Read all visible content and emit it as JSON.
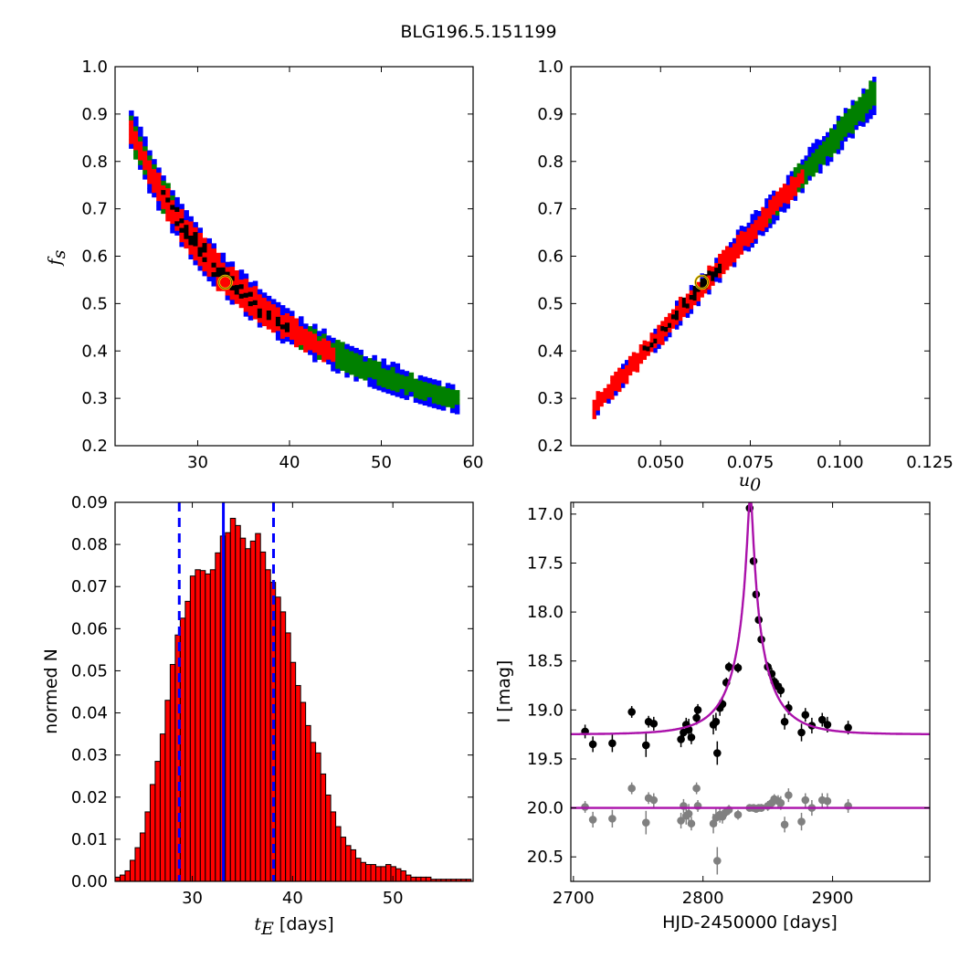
{
  "figure_title": "BLG196.5.151199",
  "colors": {
    "contour_black": "#000000",
    "contour_red": "#ff0000",
    "contour_green": "#008000",
    "contour_blue": "#0000ff",
    "hist_fill": "#ff0000",
    "hist_edge": "#000000",
    "hist_lines": "#0000ff",
    "model_curve": "#aa11aa",
    "residuals": "#808080",
    "best_fit_marker": "#ffd700"
  },
  "chart_data": [
    {
      "type": "heatmap",
      "panel": "top-left",
      "title": "",
      "xlabel": "",
      "ylabel": "f_s",
      "xlim": [
        21,
        60
      ],
      "ylim": [
        0.2,
        1.0
      ],
      "xticks": [
        "30",
        "40",
        "50",
        "60"
      ],
      "yticks": [
        "0.2",
        "0.3",
        "0.4",
        "0.5",
        "0.6",
        "0.7",
        "0.8",
        "0.9",
        "1.0"
      ],
      "curve": "fs = 15.7 / (tE - 4.3)",
      "ridge_x_range": [
        22.5,
        58
      ],
      "confidence_levels": [
        "black",
        "red",
        "green",
        "blue"
      ],
      "best_fit": {
        "x": 33.0,
        "y": 0.545
      }
    },
    {
      "type": "heatmap",
      "panel": "top-right",
      "title": "",
      "xlabel": "u_0",
      "ylabel": "",
      "xlim": [
        0.025,
        0.125
      ],
      "ylim": [
        0.2,
        1.0
      ],
      "xticks": [
        "0.050",
        "0.075",
        "0.100",
        "0.125"
      ],
      "yticks": [
        "0.2",
        "0.3",
        "0.4",
        "0.5",
        "0.6",
        "0.7",
        "0.8",
        "0.9",
        "1.0"
      ],
      "ridge_x_range": [
        0.031,
        0.11
      ],
      "ridge_y_range": [
        0.275,
        0.945
      ],
      "confidence_levels": [
        "black",
        "red",
        "green",
        "blue"
      ],
      "best_fit": {
        "x": 0.0615,
        "y": 0.545
      }
    },
    {
      "type": "bar",
      "panel": "bottom-left",
      "title": "",
      "xlabel": "t_E [days]",
      "ylabel": "normed N",
      "xlim": [
        22.3,
        58
      ],
      "ylim": [
        0.0,
        0.09
      ],
      "xticks": [
        "30",
        "40",
        "50"
      ],
      "yticks": [
        "0.00",
        "0.01",
        "0.02",
        "0.03",
        "0.04",
        "0.05",
        "0.06",
        "0.07",
        "0.08",
        "0.09"
      ],
      "bin_start": 22.3,
      "bin_width": 0.5,
      "values": [
        0.001,
        0.0015,
        0.0025,
        0.005,
        0.008,
        0.0115,
        0.0165,
        0.023,
        0.0285,
        0.035,
        0.043,
        0.0515,
        0.0585,
        0.0625,
        0.0665,
        0.0725,
        0.074,
        0.0738,
        0.073,
        0.074,
        0.078,
        0.082,
        0.0828,
        0.0862,
        0.0845,
        0.0815,
        0.079,
        0.0808,
        0.0826,
        0.0782,
        0.074,
        0.071,
        0.0675,
        0.064,
        0.059,
        0.052,
        0.0465,
        0.0425,
        0.037,
        0.033,
        0.0305,
        0.0255,
        0.0205,
        0.0165,
        0.013,
        0.0105,
        0.0085,
        0.0075,
        0.0055,
        0.0045,
        0.004,
        0.004,
        0.0035,
        0.0035,
        0.004,
        0.0035,
        0.003,
        0.0025,
        0.0015,
        0.001,
        0.001,
        0.001,
        0.001,
        0.0005,
        0.0005,
        0.0005,
        0.0005,
        0.0005,
        0.0005,
        0.0005,
        0.0005
      ],
      "median": 33.1,
      "lower_bound": 28.7,
      "upper_bound": 38.1
    },
    {
      "type": "scatter",
      "panel": "bottom-right",
      "title": "",
      "xlabel": "HJD-2450000 [days]",
      "ylabel": "I [mag]",
      "xlim": [
        2698,
        2975
      ],
      "ylim": [
        20.75,
        16.88
      ],
      "inverted_y": true,
      "xticks": [
        "2700",
        "2800",
        "2900"
      ],
      "yticks": [
        "17.0",
        "17.5",
        "18.0",
        "18.5",
        "19.0",
        "19.5",
        "20.0",
        "20.5"
      ],
      "model": {
        "t0": 2836.5,
        "u0": 0.0615,
        "tE": 33.0,
        "baseline": 19.25,
        "fs": 0.545
      },
      "residual_baseline": 20.0,
      "series": [
        {
          "points": [
            [
              2709,
              19.22,
              0.07
            ],
            [
              2715,
              19.35,
              0.08
            ],
            [
              2730,
              19.34,
              0.09
            ],
            [
              2745,
              19.02,
              0.06
            ],
            [
              2756,
              19.36,
              0.12
            ],
            [
              2758,
              19.12,
              0.06
            ],
            [
              2762,
              19.14,
              0.07
            ],
            [
              2783,
              19.3,
              0.08
            ],
            [
              2785,
              19.23,
              0.09
            ],
            [
              2787,
              19.15,
              0.07
            ],
            [
              2789,
              19.2,
              0.11
            ],
            [
              2791,
              19.28,
              0.07
            ],
            [
              2795,
              19.08,
              0.07
            ],
            [
              2796,
              19.0,
              0.06
            ],
            [
              2808,
              19.15,
              0.1
            ],
            [
              2810,
              19.12,
              0.09
            ],
            [
              2811,
              19.44,
              0.12
            ],
            [
              2813,
              18.98,
              0.08
            ],
            [
              2815,
              18.94,
              0.07
            ],
            [
              2818,
              18.72,
              0.05
            ],
            [
              2820,
              18.56,
              0.05
            ],
            [
              2827,
              18.57,
              0.05
            ],
            [
              2836,
              16.94,
              0.03
            ],
            [
              2839,
              17.48,
              0.03
            ],
            [
              2841,
              17.82,
              0.03
            ],
            [
              2843,
              18.08,
              0.03
            ],
            [
              2845,
              18.28,
              0.04
            ],
            [
              2850,
              18.56,
              0.05
            ],
            [
              2853,
              18.63,
              0.06
            ],
            [
              2855,
              18.71,
              0.05
            ],
            [
              2858,
              18.76,
              0.06
            ],
            [
              2860,
              18.8,
              0.07
            ],
            [
              2863,
              19.12,
              0.08
            ],
            [
              2866,
              18.98,
              0.07
            ],
            [
              2876,
              19.23,
              0.09
            ],
            [
              2879,
              19.05,
              0.07
            ],
            [
              2884,
              19.16,
              0.08
            ],
            [
              2892,
              19.1,
              0.07
            ],
            [
              2896,
              19.15,
              0.08
            ],
            [
              2912,
              19.18,
              0.07
            ]
          ]
        },
        {
          "points": [
            [
              2709,
              19.99,
              0.06
            ],
            [
              2715,
              20.12,
              0.08
            ],
            [
              2730,
              20.11,
              0.09
            ],
            [
              2745,
              19.8,
              0.06
            ],
            [
              2756,
              20.15,
              0.12
            ],
            [
              2758,
              19.9,
              0.06
            ],
            [
              2762,
              19.92,
              0.07
            ],
            [
              2783,
              20.13,
              0.08
            ],
            [
              2785,
              19.98,
              0.07
            ],
            [
              2787,
              20.08,
              0.09
            ],
            [
              2789,
              20.06,
              0.1
            ],
            [
              2791,
              20.16,
              0.07
            ],
            [
              2795,
              19.8,
              0.06
            ],
            [
              2796,
              19.98,
              0.06
            ],
            [
              2808,
              20.16,
              0.1
            ],
            [
              2810,
              20.1,
              0.09
            ],
            [
              2811,
              20.54,
              0.14
            ],
            [
              2813,
              20.07,
              0.08
            ],
            [
              2815,
              20.09,
              0.07
            ],
            [
              2818,
              20.04,
              0.05
            ],
            [
              2820,
              20.02,
              0.05
            ],
            [
              2827,
              20.07,
              0.05
            ],
            [
              2836,
              20.0,
              0.03
            ],
            [
              2839,
              20.0,
              0.03
            ],
            [
              2841,
              20.01,
              0.03
            ],
            [
              2843,
              20.0,
              0.03
            ],
            [
              2845,
              20.0,
              0.04
            ],
            [
              2850,
              19.98,
              0.05
            ],
            [
              2853,
              19.95,
              0.06
            ],
            [
              2855,
              19.91,
              0.05
            ],
            [
              2858,
              19.93,
              0.06
            ],
            [
              2860,
              19.95,
              0.07
            ],
            [
              2863,
              20.17,
              0.08
            ],
            [
              2866,
              19.87,
              0.07
            ],
            [
              2876,
              20.14,
              0.09
            ],
            [
              2879,
              19.92,
              0.07
            ],
            [
              2884,
              20.0,
              0.08
            ],
            [
              2892,
              19.92,
              0.07
            ],
            [
              2896,
              19.93,
              0.08
            ],
            [
              2912,
              19.98,
              0.07
            ]
          ]
        }
      ]
    }
  ]
}
